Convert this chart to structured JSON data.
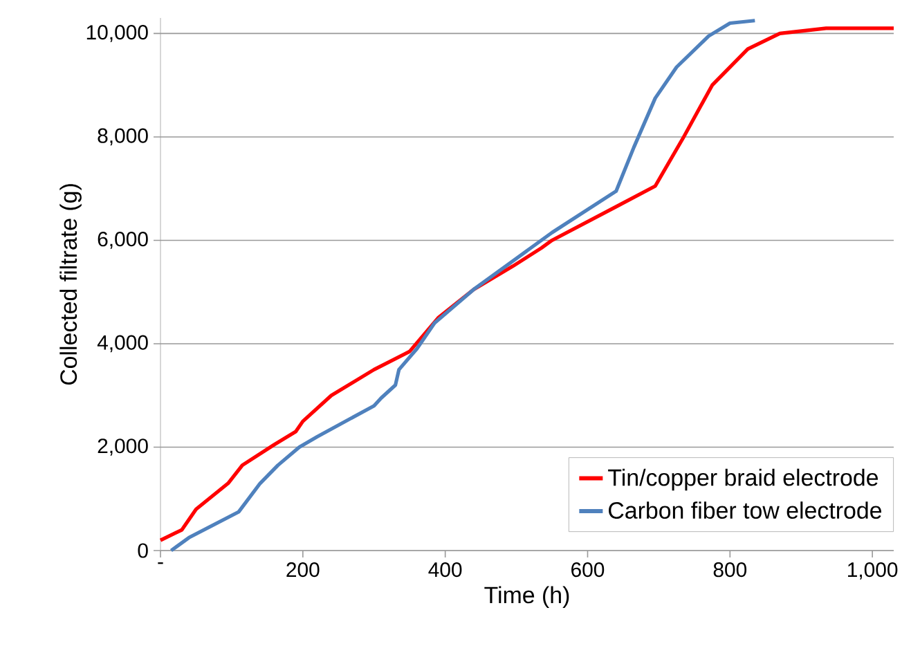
{
  "chart_data": {
    "type": "line",
    "xlabel": "Time (h)",
    "ylabel": "Collected filtrate (g)",
    "xlim": [
      0,
      1030
    ],
    "ylim": [
      0,
      10300
    ],
    "xticks": [
      {
        "value": 0,
        "label": "-"
      },
      200,
      400,
      600,
      800,
      {
        "value": 1000,
        "label": "1,000"
      }
    ],
    "yticks": [
      0,
      {
        "value": 2000,
        "label": "2,000"
      },
      {
        "value": 4000,
        "label": "4,000"
      },
      {
        "value": 6000,
        "label": "6,000"
      },
      {
        "value": 8000,
        "label": "8,000"
      },
      {
        "value": 10000,
        "label": "10,000"
      }
    ],
    "grid": "y",
    "legend": "bottom right",
    "line_style": "solid",
    "marker": "none",
    "series": [
      {
        "name": "Tin/copper braid electrode",
        "color": "#ff0000",
        "x": [
          0,
          30,
          50,
          95,
          115,
          160,
          190,
          200,
          240,
          300,
          350,
          390,
          440,
          495,
          535,
          550,
          640,
          695,
          735,
          775,
          825,
          870,
          935,
          1030
        ],
        "values": [
          200,
          400,
          800,
          1300,
          1650,
          2050,
          2300,
          2500,
          3000,
          3500,
          3850,
          4500,
          5050,
          5500,
          5850,
          6000,
          6650,
          7050,
          8000,
          9000,
          9700,
          10000,
          10100,
          10100
        ]
      },
      {
        "name": "Carbon fiber tow electrode",
        "color": "#4f81bd",
        "x": [
          15,
          40,
          110,
          140,
          165,
          195,
          220,
          300,
          310,
          330,
          335,
          360,
          385,
          440,
          490,
          550,
          640,
          665,
          695,
          725,
          770,
          800,
          835
        ],
        "values": [
          0,
          250,
          750,
          1300,
          1650,
          2000,
          2200,
          2800,
          2950,
          3200,
          3500,
          3900,
          4400,
          5050,
          5550,
          6150,
          6950,
          7800,
          8750,
          9350,
          9950,
          10200,
          10250
        ]
      }
    ]
  }
}
